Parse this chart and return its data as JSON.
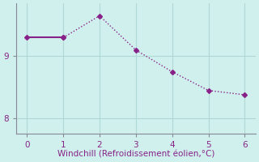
{
  "x": [
    0,
    1,
    2,
    3,
    4,
    5,
    6
  ],
  "y": [
    9.3,
    9.3,
    9.65,
    9.1,
    8.75,
    8.45,
    8.38
  ],
  "line_color": "#882288",
  "marker": "D",
  "marker_size": 3,
  "xlabel": "Windchill (Refroidissement éolien,°C)",
  "xlabel_color": "#882288",
  "xlabel_fontsize": 7.5,
  "xlim": [
    -0.3,
    6.3
  ],
  "ylim": [
    7.75,
    9.85
  ],
  "yticks": [
    8,
    9
  ],
  "xticks": [
    0,
    1,
    2,
    3,
    4,
    5,
    6
  ],
  "background_color": "#cff0ec",
  "grid_color": "#b0d8d4",
  "axis_color": "#888899",
  "tick_fontsize": 7.5,
  "tick_font_color": "#882288"
}
